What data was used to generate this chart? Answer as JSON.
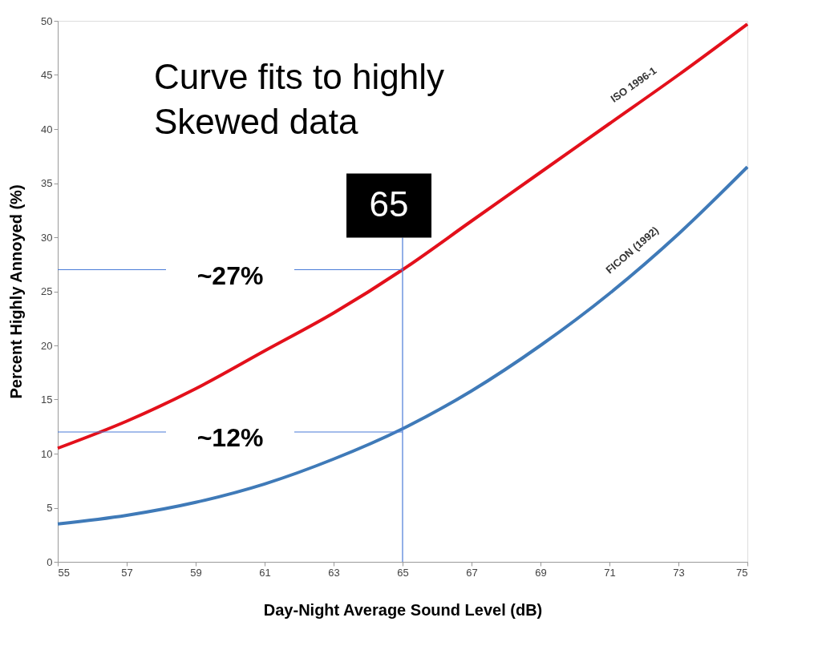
{
  "chart_data": {
    "type": "line",
    "title": "Curve fits to highly Skewed data",
    "xlabel": "Day-Night Average Sound Level (dB)",
    "ylabel": "Percent Highly Annoyed (%)",
    "x": [
      55,
      57,
      59,
      61,
      63,
      65,
      67,
      69,
      71,
      73,
      75
    ],
    "series": [
      {
        "name": "ISO 1996-1",
        "color": "#e3101b",
        "values": [
          10.5,
          13,
          16,
          19.5,
          23,
          27,
          31.5,
          36,
          40.5,
          45,
          49.7
        ]
      },
      {
        "name": "FICON (1992)",
        "color": "#3f7ab8",
        "values": [
          3.5,
          4.3,
          5.5,
          7.2,
          9.5,
          12.3,
          15.8,
          20,
          24.8,
          30.3,
          36.5
        ]
      }
    ],
    "xlim": [
      55,
      75
    ],
    "xticks": [
      55,
      57,
      59,
      61,
      63,
      65,
      67,
      69,
      71,
      73,
      75
    ],
    "ylim": [
      0,
      50
    ],
    "yticks": [
      0,
      5,
      10,
      15,
      20,
      25,
      30,
      35,
      40,
      45,
      50
    ],
    "ref_lines": [
      {
        "axis": "y",
        "value": 27,
        "label": "~27%",
        "color": "#4a7bd8"
      },
      {
        "axis": "y",
        "value": 12,
        "label": "~12%",
        "color": "#4a7bd8"
      },
      {
        "axis": "x",
        "value": 65,
        "label": "65",
        "color": "#4a7bd8"
      }
    ],
    "grid": false,
    "legend": false,
    "marker": "none",
    "line_style": "solid"
  }
}
